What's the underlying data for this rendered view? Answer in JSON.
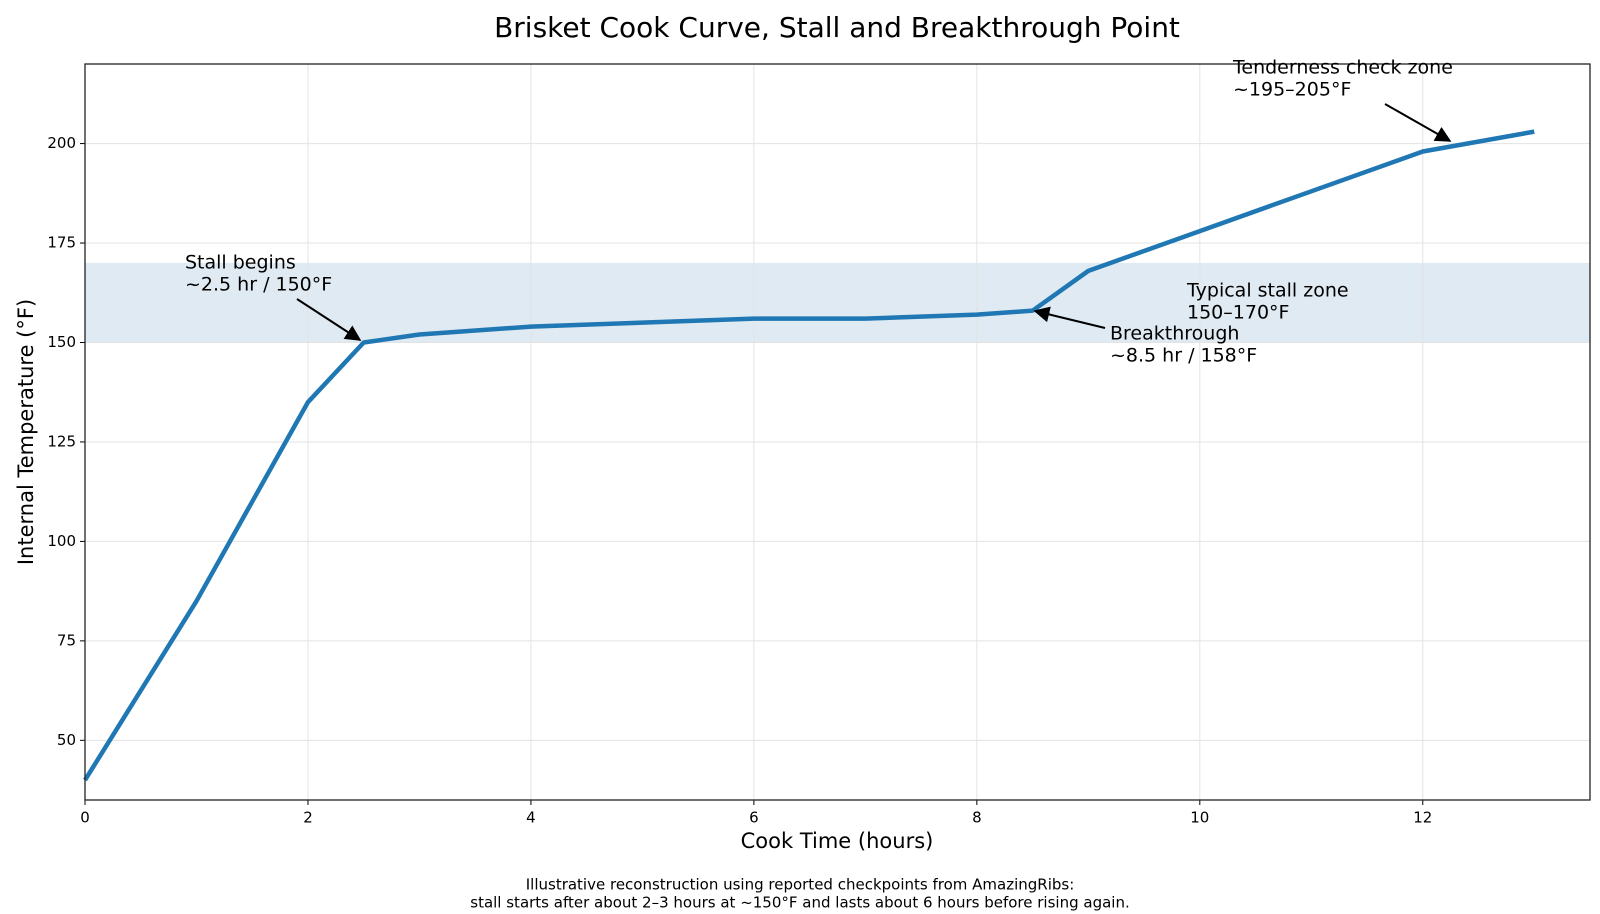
{
  "chart_data": {
    "type": "line",
    "title": "Brisket Cook Curve, Stall and Breakthrough Point",
    "x_label": "Cook Time (hours)",
    "y_label": "Internal Temperature (°F)",
    "x": [
      0,
      1,
      2,
      2.5,
      3,
      4,
      5,
      6,
      7,
      8,
      8.5,
      9,
      10,
      11,
      12,
      13
    ],
    "series": [
      {
        "color": "#1f77b4",
        "values": [
          40,
          85,
          135,
          150,
          152,
          154,
          155,
          156,
          156,
          157,
          158,
          168,
          178,
          188,
          198,
          203
        ]
      }
    ],
    "xlim": [
      0,
      13.5
    ],
    "ylim": [
      35,
      220
    ],
    "xticks": [
      0,
      2,
      4,
      6,
      8,
      10,
      12
    ],
    "yticks": [
      50,
      75,
      100,
      125,
      150,
      175,
      200
    ],
    "grid": true,
    "band": {
      "range": [
        150,
        170
      ],
      "color": "#dfeaf2",
      "label": [
        "Typical stall zone",
        "150–170°F"
      ]
    },
    "annotations": [
      {
        "lines": [
          "Stall begins",
          "~2.5 hr / 150°F"
        ]
      },
      {
        "lines": [
          "Breakthrough",
          "~8.5 hr / 158°F"
        ]
      },
      {
        "lines": [
          "Tenderness check zone",
          "~195–205°F"
        ]
      }
    ],
    "footnote": [
      "Illustrative reconstruction using reported checkpoints from AmazingRibs:",
      "stall starts after about 2–3 hours at ~150°F and lasts about 6 hours before rising again."
    ]
  }
}
